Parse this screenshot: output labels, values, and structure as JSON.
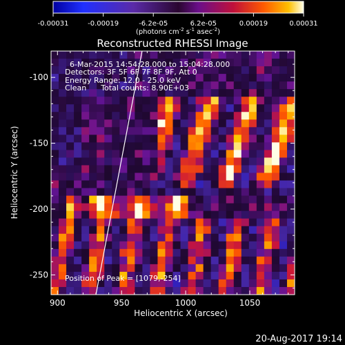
{
  "chart_data": {
    "type": "heatmap",
    "title": "Reconstructed RHESSI Image",
    "xlabel": "Heliocentric X (arcsec)",
    "ylabel": "Heliocentric Y (arcsec)",
    "xlim": [
      895,
      1085
    ],
    "ylim": [
      -265,
      -80
    ],
    "xticks": [
      900,
      950,
      1000,
      1050
    ],
    "yticks": [
      -100,
      -150,
      -200,
      -250
    ],
    "colorbar": {
      "ticks": [
        "-0.00031",
        "-0.00019",
        "-6.2e-05",
        "6.2e-05",
        "0.00019",
        "0.00031"
      ],
      "label_main": "(photons cm",
      "label_sup1": "-2",
      "label_mid1": " s",
      "label_sup2": "-1",
      "label_mid2": " asec",
      "label_sup3": "-2",
      "label_end": ")",
      "range": [
        -0.00031,
        0.00031
      ]
    },
    "annotations": [
      "6-Mar-2015 14:54:28.000 to 15:04:28.000",
      "Detectors: 3F 5F 6F 7F 8F 9F, Att 0",
      "Energy Range: 12.0 - 25.0 keV",
      "Clean      Total counts: 8.90E+03"
    ],
    "peak_text": "Position of Peak = [1079,-254]",
    "limb_line": {
      "x": [
        930,
        966
      ],
      "y": [
        -265,
        -80
      ]
    },
    "grid": false,
    "pattern_description_values": {
      "bright_band_y": [
        -200,
        -215
      ],
      "upper_right_stripes_y": [
        -120,
        -200
      ],
      "lower_stripes_y": [
        -215,
        -260
      ]
    }
  },
  "timestamp": "20-Aug-2017 19:14"
}
